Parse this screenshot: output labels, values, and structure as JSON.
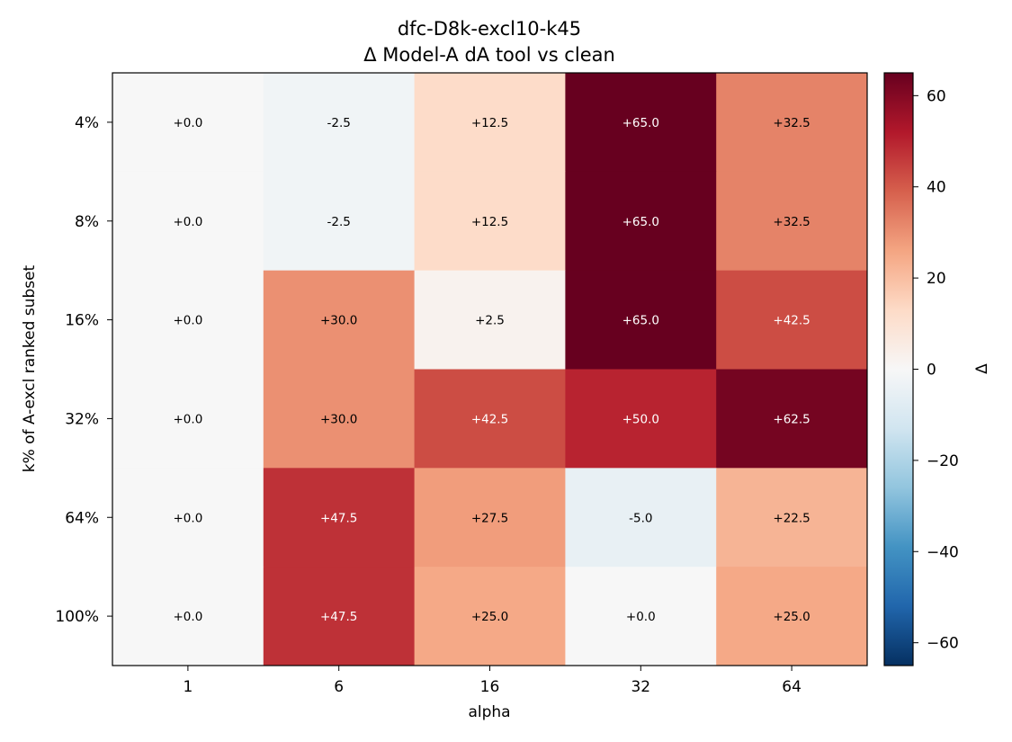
{
  "chart_data": {
    "type": "heatmap",
    "title": [
      "dfc-D8k-excl10-k45",
      "Δ Model-A dA tool vs clean"
    ],
    "xlabel": "alpha",
    "ylabel": "k% of A-excl ranked subset",
    "x_categories": [
      "1",
      "6",
      "16",
      "32",
      "64"
    ],
    "y_categories": [
      "4%",
      "8%",
      "16%",
      "32%",
      "64%",
      "100%"
    ],
    "values": [
      [
        0.0,
        -2.5,
        12.5,
        65.0,
        32.5
      ],
      [
        0.0,
        -2.5,
        12.5,
        65.0,
        32.5
      ],
      [
        0.0,
        30.0,
        2.5,
        65.0,
        42.5
      ],
      [
        0.0,
        30.0,
        42.5,
        50.0,
        62.5
      ],
      [
        0.0,
        47.5,
        27.5,
        -5.0,
        22.5
      ],
      [
        0.0,
        47.5,
        25.0,
        0.0,
        25.0
      ]
    ],
    "cell_labels": [
      [
        "+0.0",
        "-2.5",
        "+12.5",
        "+65.0",
        "+32.5"
      ],
      [
        "+0.0",
        "-2.5",
        "+12.5",
        "+65.0",
        "+32.5"
      ],
      [
        "+0.0",
        "+30.0",
        "+2.5",
        "+65.0",
        "+42.5"
      ],
      [
        "+0.0",
        "+30.0",
        "+42.5",
        "+50.0",
        "+62.5"
      ],
      [
        "+0.0",
        "+47.5",
        "+27.5",
        "-5.0",
        "+22.5"
      ],
      [
        "+0.0",
        "+47.5",
        "+25.0",
        "+0.0",
        "+25.0"
      ]
    ],
    "colorbar": {
      "label": "Δ",
      "vmin": -65,
      "vmax": 65,
      "ticks": [
        60,
        40,
        20,
        0,
        -20,
        -40,
        -60
      ],
      "tick_labels": [
        "60",
        "40",
        "20",
        "0",
        "−20",
        "−40",
        "−60"
      ],
      "colormap": "RdBu_r"
    }
  }
}
